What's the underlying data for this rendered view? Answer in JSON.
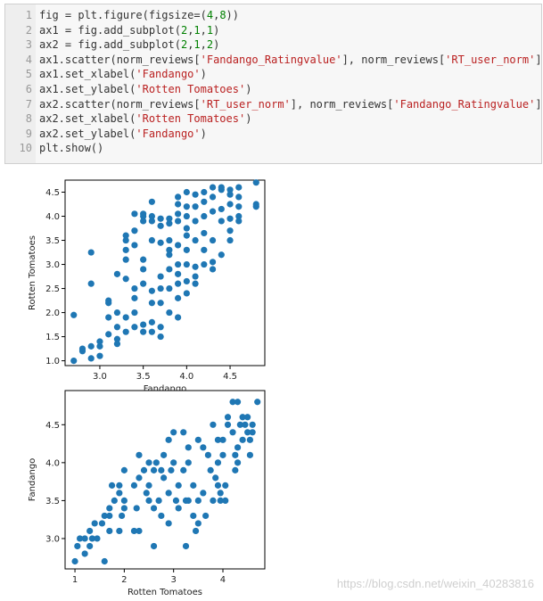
{
  "code_lines": [
    {
      "num": "1",
      "parts": [
        {
          "t": "fig = plt.figure(figsize=("
        },
        {
          "t": "4",
          "c": "n"
        },
        {
          "t": ","
        },
        {
          "t": "8",
          "c": "n"
        },
        {
          "t": "))"
        }
      ]
    },
    {
      "num": "2",
      "parts": [
        {
          "t": "ax1 = fig.add_subplot("
        },
        {
          "t": "2",
          "c": "n"
        },
        {
          "t": ","
        },
        {
          "t": "1",
          "c": "n"
        },
        {
          "t": ","
        },
        {
          "t": "1",
          "c": "n"
        },
        {
          "t": ")"
        }
      ]
    },
    {
      "num": "3",
      "parts": [
        {
          "t": "ax2 = fig.add_subplot("
        },
        {
          "t": "2",
          "c": "n"
        },
        {
          "t": ","
        },
        {
          "t": "1",
          "c": "n"
        },
        {
          "t": ","
        },
        {
          "t": "2",
          "c": "n"
        },
        {
          "t": ")"
        }
      ]
    },
    {
      "num": "4",
      "parts": [
        {
          "t": "ax1.scatter(norm_reviews["
        },
        {
          "t": "'Fandango_Ratingvalue'",
          "c": "s"
        },
        {
          "t": "], norm_reviews["
        },
        {
          "t": "'RT_user_norm'",
          "c": "s"
        },
        {
          "t": "])"
        }
      ]
    },
    {
      "num": "5",
      "parts": [
        {
          "t": "ax1.set_xlabel("
        },
        {
          "t": "'Fandango'",
          "c": "s"
        },
        {
          "t": ")"
        }
      ]
    },
    {
      "num": "6",
      "parts": [
        {
          "t": "ax1.set_ylabel("
        },
        {
          "t": "'Rotten Tomatoes'",
          "c": "s"
        },
        {
          "t": ")"
        }
      ]
    },
    {
      "num": "7",
      "parts": [
        {
          "t": "ax2.scatter(norm_reviews["
        },
        {
          "t": "'RT_user_norm'",
          "c": "s"
        },
        {
          "t": "], norm_reviews["
        },
        {
          "t": "'Fandango_Ratingvalue'",
          "c": "s"
        },
        {
          "t": "])"
        }
      ]
    },
    {
      "num": "8",
      "parts": [
        {
          "t": "ax2.set_xlabel("
        },
        {
          "t": "'Rotten Tomatoes'",
          "c": "s"
        },
        {
          "t": ")"
        }
      ]
    },
    {
      "num": "9",
      "parts": [
        {
          "t": "ax2.set_ylabel("
        },
        {
          "t": "'Fandango'",
          "c": "s"
        },
        {
          "t": ")"
        }
      ]
    },
    {
      "num": "10",
      "parts": [
        {
          "t": "plt.show()"
        }
      ]
    }
  ],
  "colors": {
    "marker": "#1f77b4",
    "string": "#BA2121",
    "number": "#008000"
  },
  "watermark": "https://blog.csdn.net/weixin_40283816",
  "chart_data": [
    {
      "type": "scatter",
      "title": "",
      "xlabel": "Fandango",
      "ylabel": "Rotten Tomatoes",
      "xlim": [
        2.6,
        4.9
      ],
      "ylim": [
        0.9,
        4.75
      ],
      "xticks": [
        3.0,
        3.5,
        4.0,
        4.5
      ],
      "yticks": [
        1.0,
        1.5,
        2.0,
        2.5,
        3.0,
        3.5,
        4.0,
        4.5
      ],
      "points": [
        [
          2.7,
          1.0
        ],
        [
          2.7,
          1.95
        ],
        [
          2.8,
          1.2
        ],
        [
          2.8,
          1.25
        ],
        [
          2.9,
          1.05
        ],
        [
          2.9,
          1.3
        ],
        [
          2.9,
          2.6
        ],
        [
          2.9,
          3.25
        ],
        [
          3.0,
          1.1
        ],
        [
          3.0,
          1.3
        ],
        [
          3.0,
          1.4
        ],
        [
          3.1,
          1.55
        ],
        [
          3.1,
          2.25
        ],
        [
          3.1,
          2.2
        ],
        [
          3.1,
          1.9
        ],
        [
          3.2,
          1.35
        ],
        [
          3.2,
          1.45
        ],
        [
          3.2,
          1.7
        ],
        [
          3.2,
          2.8
        ],
        [
          3.2,
          2.0
        ],
        [
          3.3,
          1.6
        ],
        [
          3.3,
          1.9
        ],
        [
          3.3,
          2.7
        ],
        [
          3.3,
          3.1
        ],
        [
          3.3,
          3.3
        ],
        [
          3.3,
          3.6
        ],
        [
          3.3,
          3.5
        ],
        [
          3.4,
          1.7
        ],
        [
          3.4,
          2.0
        ],
        [
          3.4,
          2.5
        ],
        [
          3.4,
          3.4
        ],
        [
          3.4,
          3.7
        ],
        [
          3.4,
          4.05
        ],
        [
          3.4,
          2.3
        ],
        [
          3.5,
          1.75
        ],
        [
          3.5,
          2.6
        ],
        [
          3.5,
          2.9
        ],
        [
          3.5,
          3.1
        ],
        [
          3.5,
          3.9
        ],
        [
          3.5,
          4.0
        ],
        [
          3.5,
          4.05
        ],
        [
          3.5,
          1.6
        ],
        [
          3.6,
          1.6
        ],
        [
          3.6,
          1.8
        ],
        [
          3.6,
          2.2
        ],
        [
          3.6,
          2.45
        ],
        [
          3.6,
          3.5
        ],
        [
          3.6,
          3.9
        ],
        [
          3.6,
          4.0
        ],
        [
          3.6,
          4.3
        ],
        [
          3.7,
          1.5
        ],
        [
          3.7,
          1.7
        ],
        [
          3.7,
          2.2
        ],
        [
          3.7,
          2.5
        ],
        [
          3.7,
          2.75
        ],
        [
          3.7,
          3.45
        ],
        [
          3.7,
          3.8
        ],
        [
          3.7,
          3.95
        ],
        [
          3.8,
          2.0
        ],
        [
          3.8,
          2.5
        ],
        [
          3.8,
          2.9
        ],
        [
          3.8,
          3.2
        ],
        [
          3.8,
          3.3
        ],
        [
          3.8,
          3.5
        ],
        [
          3.8,
          3.85
        ],
        [
          3.8,
          3.95
        ],
        [
          3.9,
          1.9
        ],
        [
          3.9,
          2.3
        ],
        [
          3.9,
          2.6
        ],
        [
          3.9,
          2.8
        ],
        [
          3.9,
          3.0
        ],
        [
          3.9,
          3.4
        ],
        [
          3.9,
          3.9
        ],
        [
          3.9,
          4.05
        ],
        [
          3.9,
          4.25
        ],
        [
          3.9,
          4.4
        ],
        [
          4.0,
          2.4
        ],
        [
          4.0,
          2.65
        ],
        [
          4.0,
          3.0
        ],
        [
          4.0,
          3.3
        ],
        [
          4.0,
          3.6
        ],
        [
          4.0,
          3.75
        ],
        [
          4.0,
          4.0
        ],
        [
          4.0,
          4.2
        ],
        [
          4.0,
          4.5
        ],
        [
          4.1,
          2.6
        ],
        [
          4.1,
          2.75
        ],
        [
          4.1,
          2.95
        ],
        [
          4.1,
          3.5
        ],
        [
          4.1,
          3.9
        ],
        [
          4.1,
          4.2
        ],
        [
          4.1,
          4.45
        ],
        [
          4.2,
          3.0
        ],
        [
          4.2,
          3.3
        ],
        [
          4.2,
          3.65
        ],
        [
          4.2,
          4.0
        ],
        [
          4.2,
          4.3
        ],
        [
          4.2,
          4.5
        ],
        [
          4.3,
          2.9
        ],
        [
          4.3,
          3.05
        ],
        [
          4.3,
          3.5
        ],
        [
          4.3,
          4.1
        ],
        [
          4.3,
          4.4
        ],
        [
          4.3,
          4.6
        ],
        [
          4.4,
          3.2
        ],
        [
          4.4,
          3.9
        ],
        [
          4.4,
          4.15
        ],
        [
          4.4,
          4.55
        ],
        [
          4.4,
          4.6
        ],
        [
          4.5,
          3.5
        ],
        [
          4.5,
          3.7
        ],
        [
          4.5,
          3.95
        ],
        [
          4.5,
          4.25
        ],
        [
          4.5,
          4.45
        ],
        [
          4.5,
          4.55
        ],
        [
          4.6,
          3.9
        ],
        [
          4.6,
          4.0
        ],
        [
          4.6,
          4.2
        ],
        [
          4.6,
          4.4
        ],
        [
          4.6,
          4.6
        ],
        [
          4.8,
          4.2
        ],
        [
          4.8,
          4.25
        ],
        [
          4.8,
          4.7
        ]
      ]
    },
    {
      "type": "scatter",
      "title": "",
      "xlabel": "Rotten Tomatoes",
      "ylabel": "Fandango",
      "xlim": [
        0.8,
        4.85
      ],
      "ylim": [
        2.6,
        4.95
      ],
      "xticks": [
        1,
        2,
        3,
        4
      ],
      "yticks": [
        3.0,
        3.5,
        4.0,
        4.5
      ],
      "points": [
        [
          1.0,
          2.7
        ],
        [
          1.05,
          2.9
        ],
        [
          1.1,
          3.0
        ],
        [
          1.2,
          2.8
        ],
        [
          1.2,
          3.0
        ],
        [
          1.3,
          2.9
        ],
        [
          1.3,
          3.1
        ],
        [
          1.35,
          3.0
        ],
        [
          1.4,
          3.2
        ],
        [
          1.45,
          3.0
        ],
        [
          1.55,
          3.2
        ],
        [
          1.6,
          3.3
        ],
        [
          1.6,
          2.7
        ],
        [
          1.7,
          3.1
        ],
        [
          1.7,
          3.3
        ],
        [
          1.7,
          3.4
        ],
        [
          1.75,
          3.7
        ],
        [
          1.8,
          3.5
        ],
        [
          1.9,
          3.7
        ],
        [
          1.9,
          3.6
        ],
        [
          1.9,
          3.1
        ],
        [
          1.95,
          3.3
        ],
        [
          2.0,
          3.4
        ],
        [
          2.0,
          3.9
        ],
        [
          2.0,
          3.5
        ],
        [
          2.2,
          3.1
        ],
        [
          2.2,
          3.7
        ],
        [
          2.25,
          3.4
        ],
        [
          2.3,
          3.1
        ],
        [
          2.3,
          4.1
        ],
        [
          2.3,
          3.8
        ],
        [
          2.4,
          3.9
        ],
        [
          2.45,
          3.6
        ],
        [
          2.5,
          3.7
        ],
        [
          2.5,
          3.5
        ],
        [
          2.5,
          4.0
        ],
        [
          2.6,
          2.9
        ],
        [
          2.6,
          3.9
        ],
        [
          2.6,
          3.4
        ],
        [
          2.65,
          4.0
        ],
        [
          2.7,
          3.5
        ],
        [
          2.75,
          3.9
        ],
        [
          2.75,
          3.3
        ],
        [
          2.8,
          3.8
        ],
        [
          2.8,
          4.1
        ],
        [
          2.9,
          3.2
        ],
        [
          2.9,
          3.6
        ],
        [
          2.9,
          4.3
        ],
        [
          2.95,
          3.9
        ],
        [
          3.0,
          4.4
        ],
        [
          3.0,
          4.0
        ],
        [
          3.05,
          3.5
        ],
        [
          3.1,
          3.7
        ],
        [
          3.1,
          3.4
        ],
        [
          3.2,
          3.9
        ],
        [
          3.2,
          4.4
        ],
        [
          3.25,
          3.5
        ],
        [
          3.25,
          2.9
        ],
        [
          3.3,
          3.5
        ],
        [
          3.3,
          4.2
        ],
        [
          3.3,
          4.0
        ],
        [
          3.4,
          3.7
        ],
        [
          3.4,
          3.3
        ],
        [
          3.45,
          3.1
        ],
        [
          3.5,
          3.5
        ],
        [
          3.5,
          4.3
        ],
        [
          3.5,
          3.2
        ],
        [
          3.6,
          3.6
        ],
        [
          3.6,
          4.2
        ],
        [
          3.65,
          3.3
        ],
        [
          3.7,
          4.1
        ],
        [
          3.75,
          3.9
        ],
        [
          3.8,
          4.5
        ],
        [
          3.8,
          3.5
        ],
        [
          3.85,
          3.8
        ],
        [
          3.9,
          3.7
        ],
        [
          3.9,
          4.3
        ],
        [
          3.9,
          4.0
        ],
        [
          3.95,
          3.6
        ],
        [
          3.95,
          3.5
        ],
        [
          4.0,
          4.3
        ],
        [
          4.0,
          4.1
        ],
        [
          4.05,
          3.7
        ],
        [
          4.05,
          3.5
        ],
        [
          4.1,
          4.5
        ],
        [
          4.1,
          4.6
        ],
        [
          4.2,
          4.8
        ],
        [
          4.2,
          4.4
        ],
        [
          4.25,
          4.1
        ],
        [
          4.25,
          3.9
        ],
        [
          4.3,
          4.8
        ],
        [
          4.3,
          4.0
        ],
        [
          4.3,
          4.2
        ],
        [
          4.35,
          4.5
        ],
        [
          4.4,
          4.6
        ],
        [
          4.4,
          4.3
        ],
        [
          4.45,
          4.5
        ],
        [
          4.5,
          4.6
        ],
        [
          4.5,
          4.4
        ],
        [
          4.55,
          4.1
        ],
        [
          4.55,
          4.3
        ],
        [
          4.6,
          4.5
        ],
        [
          4.6,
          4.4
        ],
        [
          4.7,
          4.8
        ]
      ]
    }
  ]
}
